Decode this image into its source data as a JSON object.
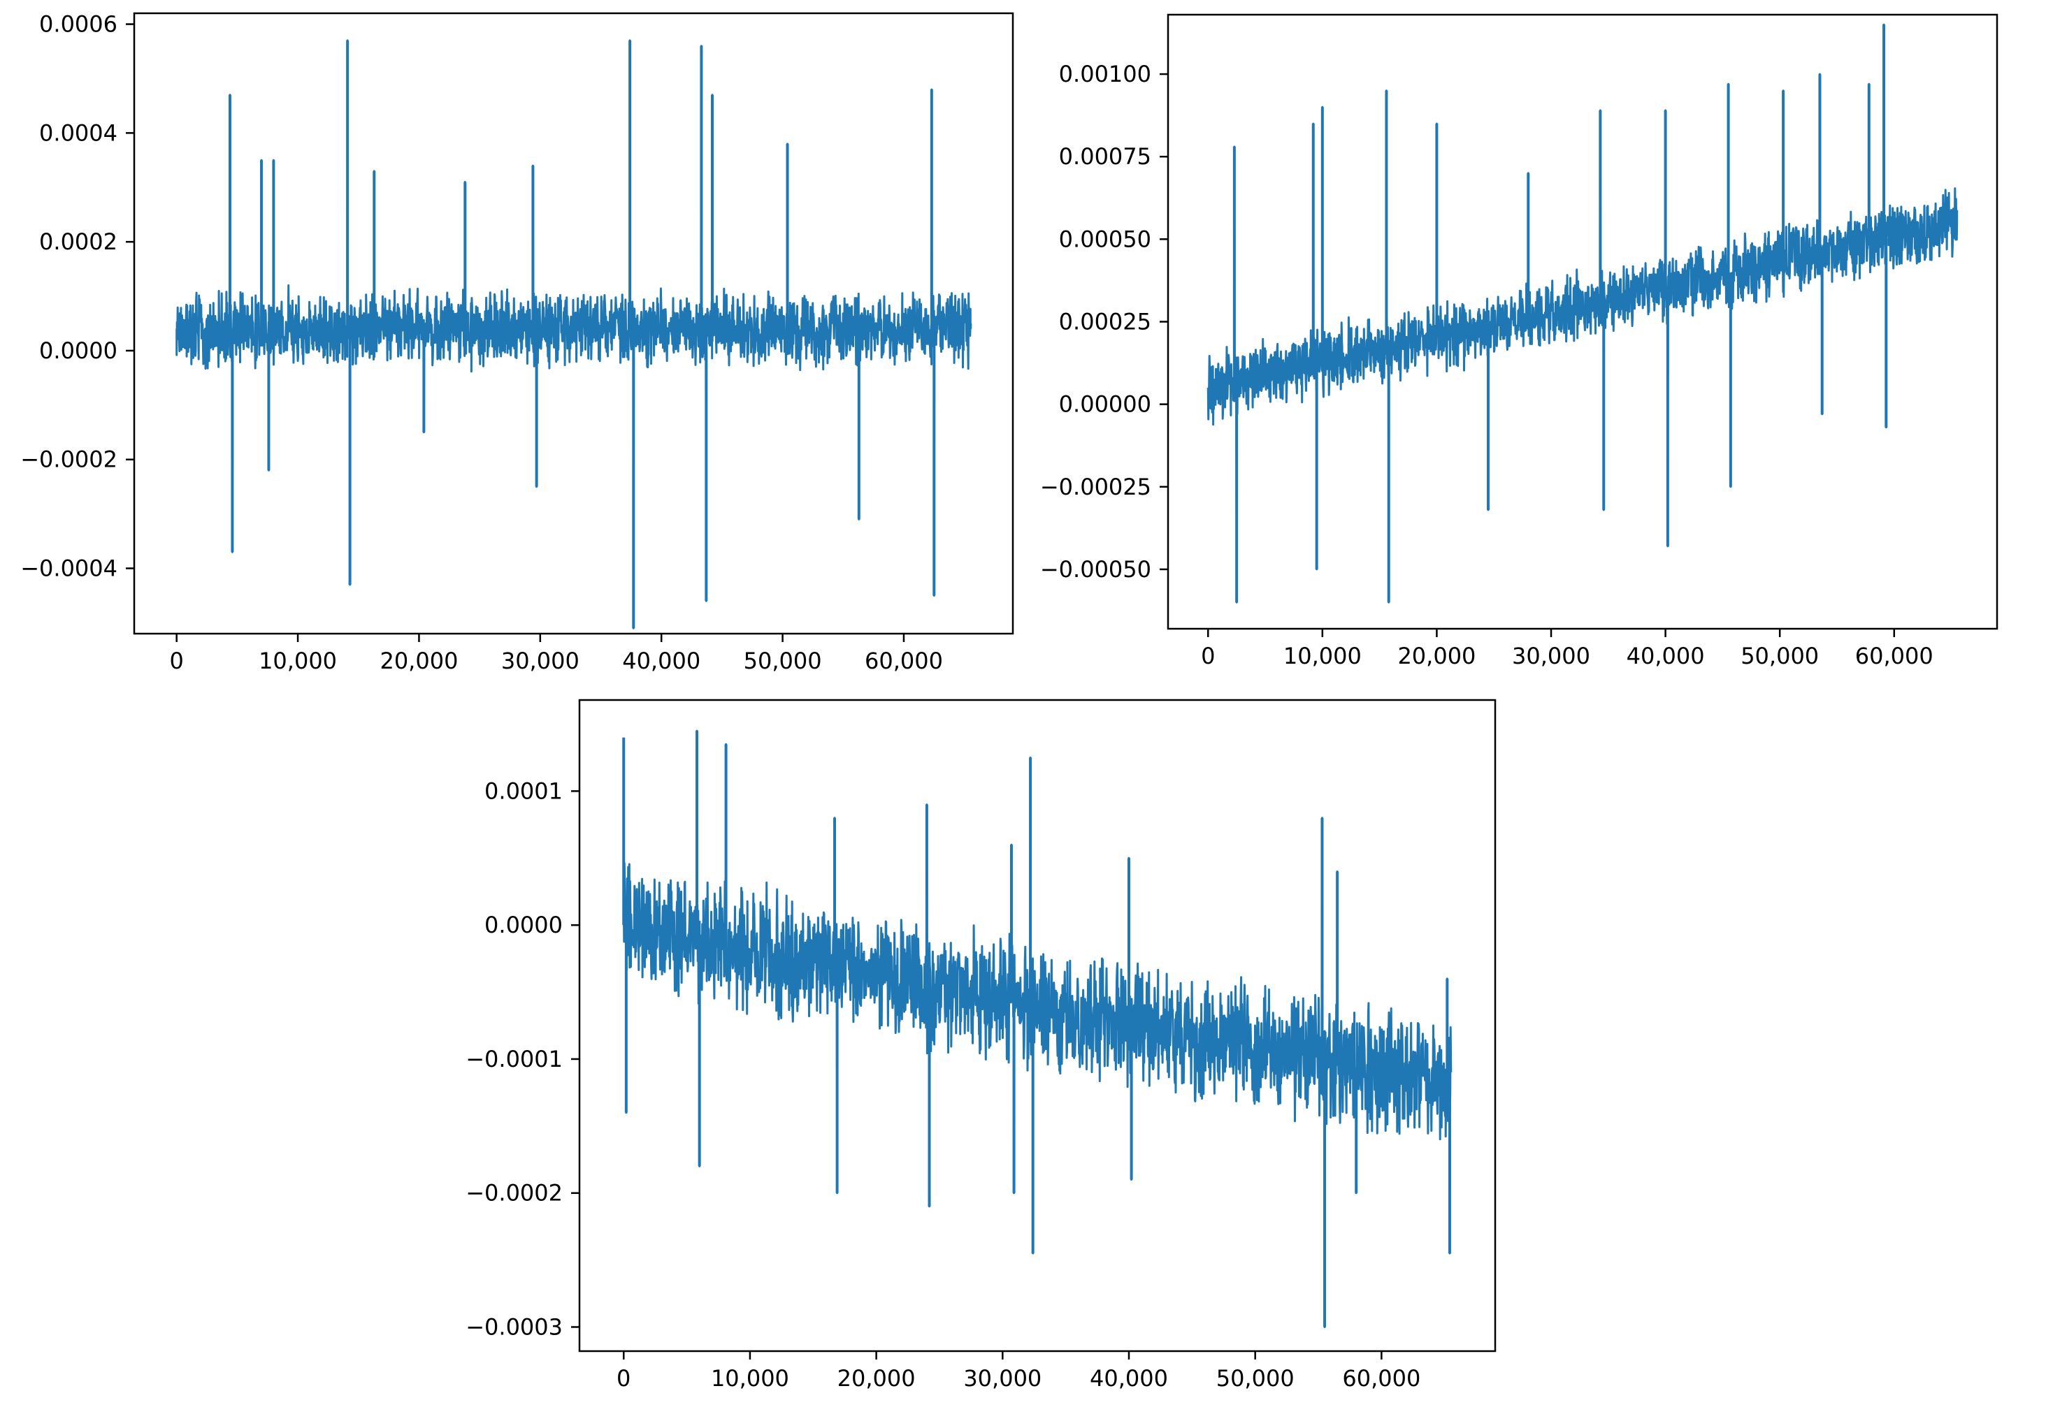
{
  "colors": {
    "series": "#1f77b4"
  },
  "chart_data": [
    {
      "type": "line",
      "title": "",
      "xlabel": "",
      "ylabel": "",
      "grid": false,
      "xlim": [
        -3500,
        69000
      ],
      "ylim": [
        -0.00052,
        0.00062
      ],
      "xticks": [
        0,
        10000,
        20000,
        30000,
        40000,
        50000,
        60000
      ],
      "xtick_labels": [
        "0",
        "10,000",
        "20,000",
        "30,000",
        "40,000",
        "50,000",
        "60,000"
      ],
      "yticks": [
        -0.0004,
        -0.0002,
        0.0,
        0.0002,
        0.0004,
        0.0006
      ],
      "ytick_labels": [
        "−0.0004",
        "−0.0002",
        "0.0000",
        "0.0002",
        "0.0004",
        "0.0006"
      ],
      "x": [
        0,
        4400,
        4600,
        7000,
        7600,
        8000,
        14100,
        14300,
        16300,
        20400,
        23800,
        29400,
        29700,
        37400,
        37700,
        43300,
        43700,
        44200,
        50400,
        56300,
        62300,
        62500,
        65500
      ],
      "y": [
        4e-05,
        0.00047,
        -0.00037,
        0.00035,
        -0.00022,
        0.00035,
        0.00057,
        -0.00043,
        0.00033,
        -0.00015,
        0.00031,
        0.00034,
        -0.00025,
        0.00057,
        -0.00051,
        0.00056,
        -0.00046,
        0.00047,
        0.00038,
        -0.00031,
        0.00048,
        -0.00045,
        5e-05
      ],
      "band": {
        "center": 4e-05,
        "amplitude": 6e-05
      }
    },
    {
      "type": "line",
      "title": "",
      "xlabel": "",
      "ylabel": "",
      "grid": false,
      "xlim": [
        -3500,
        69000
      ],
      "ylim": [
        -0.00068,
        0.00118
      ],
      "xticks": [
        0,
        10000,
        20000,
        30000,
        40000,
        50000,
        60000
      ],
      "xtick_labels": [
        "0",
        "10,000",
        "20,000",
        "30,000",
        "40,000",
        "50,000",
        "60,000"
      ],
      "yticks": [
        -0.0005,
        -0.00025,
        0.0,
        0.00025,
        0.0005,
        0.00075,
        0.001
      ],
      "ytick_labels": [
        "−0.00050",
        "−0.00025",
        "0.00000",
        "0.00025",
        "0.00050",
        "0.00075",
        "0.00100"
      ],
      "x": [
        0,
        2300,
        2500,
        9200,
        9500,
        10000,
        15600,
        15800,
        20000,
        24500,
        28000,
        34300,
        34600,
        40000,
        40200,
        45500,
        45700,
        50300,
        53500,
        53700,
        57800,
        59100,
        59300,
        65500
      ],
      "y": [
        5e-05,
        0.00078,
        -0.0006,
        0.00085,
        -0.0005,
        0.0009,
        0.00095,
        -0.0006,
        0.00085,
        -0.00032,
        0.0007,
        0.00089,
        -0.00032,
        0.00089,
        -0.00043,
        0.00097,
        -0.00025,
        0.00095,
        0.001,
        -3e-05,
        0.00097,
        0.00115,
        -7e-05,
        0.00055
      ],
      "band": {
        "start": 5e-05,
        "end": 0.00055,
        "amplitude": 9e-05
      }
    },
    {
      "type": "line",
      "title": "",
      "xlabel": "",
      "ylabel": "",
      "grid": false,
      "xlim": [
        -3500,
        69000
      ],
      "ylim": [
        -0.000318,
        0.000168
      ],
      "xticks": [
        0,
        10000,
        20000,
        30000,
        40000,
        50000,
        60000
      ],
      "xtick_labels": [
        "0",
        "10,000",
        "20,000",
        "30,000",
        "40,000",
        "50,000",
        "60,000"
      ],
      "yticks": [
        -0.0003,
        -0.0002,
        -0.0001,
        0.0,
        0.0001
      ],
      "ytick_labels": [
        "−0.0003",
        "−0.0002",
        "−0.0001",
        "0.0000",
        "0.0001"
      ],
      "x": [
        0,
        200,
        5800,
        6000,
        8100,
        16700,
        16900,
        24000,
        24200,
        30700,
        30900,
        32200,
        32400,
        40000,
        40200,
        55300,
        55500,
        56500,
        58000,
        65200,
        65400
      ],
      "y": [
        0.00014,
        -0.00014,
        0.000145,
        -0.00018,
        0.000135,
        8e-05,
        -0.0002,
        9e-05,
        -0.00021,
        6e-05,
        -0.0002,
        0.000125,
        -0.000245,
        5e-05,
        -0.00019,
        8e-05,
        -0.0003,
        4e-05,
        -0.0002,
        -4e-05,
        -0.000245
      ],
      "band": {
        "start": 0.0,
        "end": -0.00012,
        "amplitude": 4e-05
      }
    }
  ]
}
